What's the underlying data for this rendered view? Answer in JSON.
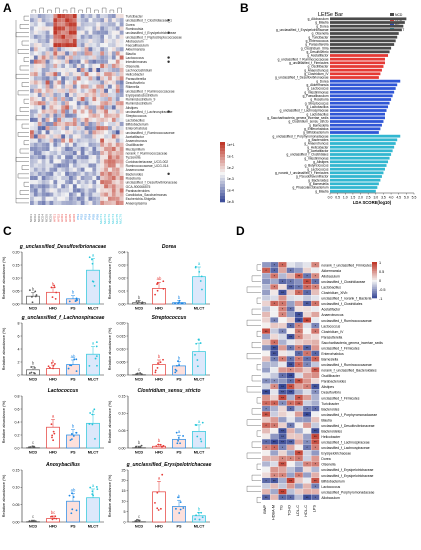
{
  "panels": {
    "a": "A",
    "b": "B",
    "c": "C",
    "d": "D"
  },
  "colors": {
    "NCD": "#555555",
    "HFD": "#e53935",
    "PS": "#1e88e5",
    "MLCT": "#26c6da",
    "heat_high": "#c0392b",
    "heat_mid": "#f4f4f4",
    "heat_low": "#2c3e91"
  },
  "chart_data": [
    {
      "type": "heatmap",
      "panel": "A",
      "rows": [
        "Turicibacter",
        "unclassified_f_Clostridiaceae_1",
        "Dorea",
        "Romboutsia",
        "unclassified_f_Erysipelotrichaceae",
        "unclassified_f_Peptostreptococcaceae",
        "Allobaculum",
        "Faecalibaculum",
        "Akkermansia",
        "Blautia",
        "Lactococcus",
        "Intestinimonas",
        "Olsenella",
        "Lachnoclostridium",
        "Helicobacter",
        "Parasutterella",
        "Desulfovibrio",
        "Rikenella",
        "unclassified_f_Ruminococcaceae",
        "Erysipelatoclostridium",
        "Ruminiclostridium_9",
        "Ruminiclostridium",
        "Alistipes",
        "unclassified_f_Lachnospiraceae",
        "Streptococcus",
        "Lactobacillus",
        "Bifidobacterium",
        "Enterorhabdus",
        "unclassified_f_Ruminococcaceae",
        "Acetatifactor",
        "Anaerotruncus",
        "Oscillibacter",
        "Mucispirillum",
        "norank_f_Ruminococcaceae",
        "Tyzzerella",
        "Coriobacteriaceae_UCG-002",
        "Ruminococcaceae_UCG-014",
        "Anaerovorax",
        "Bacteroides",
        "Roseburia",
        "unclassified_f_Desulfovibrionaceae",
        "GCA-900066575",
        "Parabacteroides",
        "Candidatus_Saccharimonas",
        "Escherichia-Shigella",
        "Anaeroplasma"
      ],
      "legend_values": [
        "1e+1",
        "1e-1",
        "1e-2",
        "1e-3",
        "1e-4",
        "1e-5"
      ],
      "groups": [
        "NCD",
        "HFD",
        "PS",
        "MLCT"
      ],
      "marked_rows": [
        "unclassified_f_Clostridiaceae_1",
        "unclassified_f_Erysipelotrichaceae",
        "Intestinimonas",
        "Lactococcus",
        "unclassified_f_Lachnospiraceae",
        "Bacteroides"
      ]
    },
    {
      "type": "bar",
      "panel": "B",
      "orientation": "horizontal",
      "title": "LEfSe Bar",
      "xlabel": "LDA SCORE(log10)",
      "xlim": [
        0,
        5.5
      ],
      "xticks": [
        "0.0",
        "0.5",
        "1.0",
        "1.5",
        "2.0",
        "2.5",
        "3.0",
        "3.5",
        "4.0",
        "4.5",
        "5.0",
        "5.5"
      ],
      "legend": [
        "NCD",
        "HFD",
        "PS",
        "MLCT"
      ],
      "categories": [
        "g_Allobaculum",
        "g_Blautia",
        "g_Dorea",
        "g_unclassified_f_Erysipelotrichaceae",
        "g_Olsenella",
        "g_Turicibacter",
        "g_Enterococcus",
        "g_Parasutterella",
        "g_Clostridium_XlVa",
        "g_Desulfovibrio",
        "g_Acetatifactor",
        "g_unclassified_f_Ruminococcaceae",
        "g_unclassified_f_Firmicutes",
        "g_Oscillibacter",
        "g_Anaerotruncus",
        "g_Clostridium_IV",
        "g_unclassified_f_Desulfovibrionaceae",
        "g_Dorea",
        "g_Akkermansia",
        "g_Lactococcus",
        "g_Intestinimonas",
        "g_Faecalibaculum",
        "g_Roseburia",
        "g_Streptococcus",
        "g_Lactobacillus",
        "g_unclassified_f_Lachnospiraceae",
        "g_Lactobacillus",
        "g_Saccharibacteria_genera_incertae_sedis",
        "g_Clostridium_sensu_stricto",
        "g_Barnesiella",
        "g_Enterorhabdus",
        "g_Bifidobacterium",
        "g_unclassified_f_Porphyromonadaceae",
        "g_Bacteroides",
        "g_Anaerotruncus",
        "g_Helicobacter",
        "g_Acetatifactor",
        "g_unclassified_f_Clostridiales",
        "g_Intestinimonas",
        "g_Alistipes",
        "g_Butyricicoccus",
        "g_Lactococcus",
        "g_norank_f_unclassified_f_Firmicutes",
        "g_Pseudoflavonifractor",
        "g_Bacteroides",
        "g_Barnesiella",
        "g_Phascolarctobacterium",
        "g_Blautia"
      ],
      "values": [
        5.0,
        4.9,
        4.8,
        4.7,
        4.5,
        4.4,
        4.3,
        4.2,
        4.0,
        3.9,
        3.8,
        3.6,
        3.6,
        3.5,
        3.4,
        3.3,
        3.2,
        4.6,
        4.4,
        4.3,
        4.2,
        4.1,
        4.0,
        3.9,
        3.8,
        3.7,
        3.6,
        3.6,
        3.5,
        3.4,
        3.3,
        3.2,
        4.6,
        4.4,
        4.3,
        4.2,
        4.1,
        4.0,
        3.9,
        3.8,
        3.7,
        3.6,
        3.5,
        3.4,
        3.3,
        3.2,
        3.1,
        3.0
      ],
      "groups": [
        "NCD",
        "NCD",
        "NCD",
        "NCD",
        "NCD",
        "NCD",
        "NCD",
        "NCD",
        "NCD",
        "NCD",
        "HFD",
        "HFD",
        "HFD",
        "HFD",
        "HFD",
        "HFD",
        "HFD",
        "PS",
        "PS",
        "PS",
        "PS",
        "PS",
        "PS",
        "PS",
        "PS",
        "PS",
        "PS",
        "PS",
        "PS",
        "PS",
        "PS",
        "PS",
        "MLCT",
        "MLCT",
        "MLCT",
        "MLCT",
        "MLCT",
        "MLCT",
        "MLCT",
        "MLCT",
        "MLCT",
        "MLCT",
        "MLCT",
        "MLCT",
        "MLCT",
        "MLCT",
        "MLCT",
        "MLCT"
      ]
    },
    {
      "type": "bar",
      "panel": "C",
      "subplots": [
        {
          "title": "g_unclassified_Desulfovibrionaceae",
          "ylabel": "Relative abundance (%)",
          "yticks": [
            "0.00",
            "0.05",
            "0.10",
            "0.15",
            "0.20"
          ],
          "ylim": [
            0,
            0.2
          ],
          "categories": [
            "NCD",
            "HFD",
            "PS",
            "MLCT"
          ],
          "values": [
            0.03,
            0.045,
            0.02,
            0.13
          ],
          "sig": [
            "b",
            "b",
            "b",
            "a"
          ]
        },
        {
          "title": "Dorea",
          "ylabel": "Relative abundance (%)",
          "yticks": [
            "0.00",
            "0.01",
            "0.02",
            "0.03",
            "0.04"
          ],
          "ylim": [
            0,
            0.04
          ],
          "categories": [
            "NCD",
            "HFD",
            "PS",
            "MLCT"
          ],
          "values": [
            0.001,
            0.012,
            0.001,
            0.021
          ],
          "sig": [
            "b",
            "ab",
            "b",
            "a"
          ]
        },
        {
          "title": "g_unclassified_f_Lachnospiraceae",
          "ylabel": "Relative abundance (%)",
          "yticks": [
            "0",
            "2",
            "4",
            "6",
            "8"
          ],
          "ylim": [
            0,
            8
          ],
          "categories": [
            "NCD",
            "HFD",
            "PS",
            "MLCT"
          ],
          "values": [
            0.8,
            1.0,
            1.6,
            3.2
          ],
          "sig": [
            "b",
            "b",
            "ab",
            "a"
          ]
        },
        {
          "title": "Streptococcus",
          "ylabel": "Relative abundance (%)",
          "yticks": [
            "0.000",
            "0.005",
            "0.010",
            "0.015",
            "0.020"
          ],
          "ylim": [
            0,
            0.02
          ],
          "categories": [
            "NCD",
            "HFD",
            "PS",
            "MLCT"
          ],
          "values": [
            0.0,
            0.004,
            0.0035,
            0.009
          ],
          "sig": [
            "c",
            "b",
            "b",
            "a"
          ]
        },
        {
          "title": "Lactococcus",
          "ylabel": "Relative abundance (%)",
          "yticks": [
            "0.0",
            "0.2",
            "0.4",
            "0.6",
            "0.8"
          ],
          "ylim": [
            0,
            0.8
          ],
          "categories": [
            "NCD",
            "HFD",
            "PS",
            "MLCT"
          ],
          "values": [
            0.0,
            0.32,
            0.2,
            0.38
          ],
          "sig": [
            "c",
            "a",
            "b",
            "a"
          ]
        },
        {
          "title": "Clostridium_sensu_stricto",
          "ylabel": "Relative abundance (%)",
          "yticks": [
            "0.00",
            "0.05",
            "0.10",
            "0.15"
          ],
          "ylim": [
            0,
            0.15
          ],
          "categories": [
            "NCD",
            "HFD",
            "PS",
            "MLCT"
          ],
          "values": [
            0.0,
            0.005,
            0.025,
            0.048
          ],
          "sig": [
            "b",
            "b",
            "a",
            "a"
          ]
        },
        {
          "title": "Anoxybacillus",
          "ylabel": "Relative abundance (%)",
          "yticks": [
            "0.00",
            "0.05",
            "0.10",
            "0.15"
          ],
          "ylim": [
            0,
            0.15
          ],
          "categories": [
            "NCD",
            "HFD",
            "PS",
            "MLCT"
          ],
          "values": [
            0.0,
            0.01,
            0.06,
            0.07
          ],
          "sig": [
            "c",
            "bc",
            "ab",
            "a"
          ]
        },
        {
          "title": "g_unclassified_Erysipelotrichaceae",
          "ylabel": "Relative abundance (%)",
          "yticks": [
            "0",
            "5",
            "10",
            "15",
            "20",
            "25"
          ],
          "ylim": [
            0,
            25
          ],
          "categories": [
            "NCD",
            "HFD",
            "PS",
            "MLCT"
          ],
          "values": [
            0.1,
            14.5,
            7.5,
            3.0
          ],
          "sig": [
            "c",
            "a",
            "b",
            "b"
          ]
        }
      ]
    },
    {
      "type": "heatmap",
      "panel": "D",
      "rows": [
        "norank_f_unclassified_Firmicutes",
        "Akkermansia",
        "Allobaculum",
        "unclassified_f_Clostridiaceae",
        "Lactobacillus",
        "Clostridium_XlVb",
        "unclassified_f_norank_f_Bacteria",
        "unclassified_f_Clostridiales",
        "Acetatifactor",
        "Anaerotruncus",
        "unclassified_f_Ruminococcaceae",
        "Lactococcus",
        "Clostridium_IV",
        "Parasutterella",
        "Saccharibacteria_genera_incertae_sedis",
        "unclassified_f_Firmicutes",
        "Enterorhabdus",
        "Barnesiella",
        "unclassified_f_Ruminococcaceae",
        "norank_f_unclassified_Bacteroidales",
        "Oscillibacter",
        "Parabacteroides",
        "Alistipes",
        "Desulfovibrio",
        "unclassified_f_Firmicutes",
        "Turicibacter",
        "Bacteroides",
        "unclassified_f_Porphyromonadaceae",
        "Blautia",
        "unclassified_f_Desulfovibrionaceae",
        "Bacteroidetes",
        "Helicobacter",
        "unclassified_f_Lachnospiraceae",
        "unclassified_f_Lachnospiraceae",
        "Erysipelotrichaceae",
        "Dorea",
        "Olsenella",
        "unclassified_f_Erysipelotrichaceae",
        "unclassified_f_Erysipelotrichaceae",
        "Bifidobacterium",
        "Lactococcus",
        "unclassified_Porphyromonadaceae",
        "Allobaculum"
      ],
      "columns": [
        "BWP",
        "HDBA-M",
        "TG",
        "TCHO",
        "LDL-C",
        "HDL-C",
        "LPS"
      ],
      "legend_ticks": [
        "1",
        "0.5",
        "0",
        "-0.5",
        "-1"
      ]
    }
  ]
}
